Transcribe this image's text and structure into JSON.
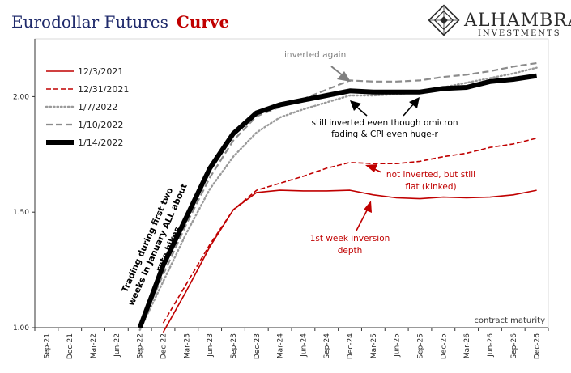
{
  "header": {
    "title_main": "Eurodollar Futures",
    "title_accent": "Curve",
    "brand_name": "ALHAMBRA",
    "brand_sub": "INVESTMENTS"
  },
  "chart_data": {
    "type": "line",
    "xlabel": "contract maturity",
    "categories": [
      "Sep-21",
      "Dec-21",
      "Mar-22",
      "Jun-22",
      "Sep-22",
      "Dec-22",
      "Mar-23",
      "Jun-23",
      "Sep-23",
      "Dec-23",
      "Mar-24",
      "Jun-24",
      "Sep-24",
      "Dec-24",
      "Mar-25",
      "Jun-25",
      "Sep-25",
      "Dec-25",
      "Mar-26",
      "Jun-26",
      "Sep-26",
      "Dec-26"
    ],
    "ylim": [
      1.0,
      2.25
    ],
    "yticks": [
      1.0,
      1.5,
      2.0
    ],
    "ytick_labels": [
      "1.00",
      "1.50",
      "2.00"
    ],
    "legend_position": "top-left",
    "series": [
      {
        "name": "12/3/2021",
        "color": "#c00000",
        "style": "solid",
        "width": 1.6,
        "values": [
          null,
          null,
          null,
          null,
          null,
          0.97,
          1.16,
          1.35,
          1.51,
          1.585,
          1.595,
          1.592,
          1.592,
          1.595,
          1.575,
          1.562,
          1.558,
          1.565,
          1.562,
          1.565,
          1.575,
          1.595
        ]
      },
      {
        "name": "12/31/2021",
        "color": "#c00000",
        "style": "dashed",
        "width": 1.6,
        "values": [
          null,
          null,
          null,
          null,
          null,
          1.02,
          1.19,
          1.36,
          1.51,
          1.595,
          1.625,
          1.655,
          1.69,
          1.715,
          1.71,
          1.71,
          1.72,
          1.74,
          1.755,
          1.78,
          1.795,
          1.82
        ]
      },
      {
        "name": "1/7/2022",
        "color": "#9a9a9a",
        "style": "dotted",
        "width": 2.4,
        "values": [
          null,
          null,
          null,
          null,
          0.99,
          1.2,
          1.41,
          1.6,
          1.74,
          1.845,
          1.91,
          1.945,
          1.975,
          2.005,
          2.005,
          2.01,
          2.02,
          2.04,
          2.06,
          2.08,
          2.1,
          2.125
        ]
      },
      {
        "name": "1/10/2022",
        "color": "#8c8c8c",
        "style": "dashed",
        "width": 2.2,
        "values": [
          null,
          null,
          null,
          null,
          1.0,
          1.23,
          1.45,
          1.65,
          1.81,
          1.915,
          1.955,
          1.99,
          2.03,
          2.07,
          2.065,
          2.065,
          2.07,
          2.085,
          2.095,
          2.11,
          2.13,
          2.145
        ]
      },
      {
        "name": "1/14/2022",
        "color": "#000000",
        "style": "solid",
        "width": 6,
        "values": [
          null,
          null,
          null,
          null,
          1.0,
          1.27,
          1.48,
          1.69,
          1.84,
          1.93,
          1.965,
          1.985,
          2.005,
          2.025,
          2.02,
          2.02,
          2.02,
          2.035,
          2.04,
          2.065,
          2.075,
          2.09
        ]
      }
    ],
    "annotations": {
      "inverted_again": "inverted again",
      "still_inverted_1": "still inverted even though omicron",
      "still_inverted_2": "fading & CPI even huge-r",
      "not_inverted_1": "not inverted, but still",
      "not_inverted_2": "flat (kinked)",
      "first_week_1": "1st week inversion",
      "first_week_2": "depth",
      "trading_1": "Trading during first two",
      "trading_2": "weeks in January ALL about",
      "trading_3": "rate hikes"
    }
  }
}
